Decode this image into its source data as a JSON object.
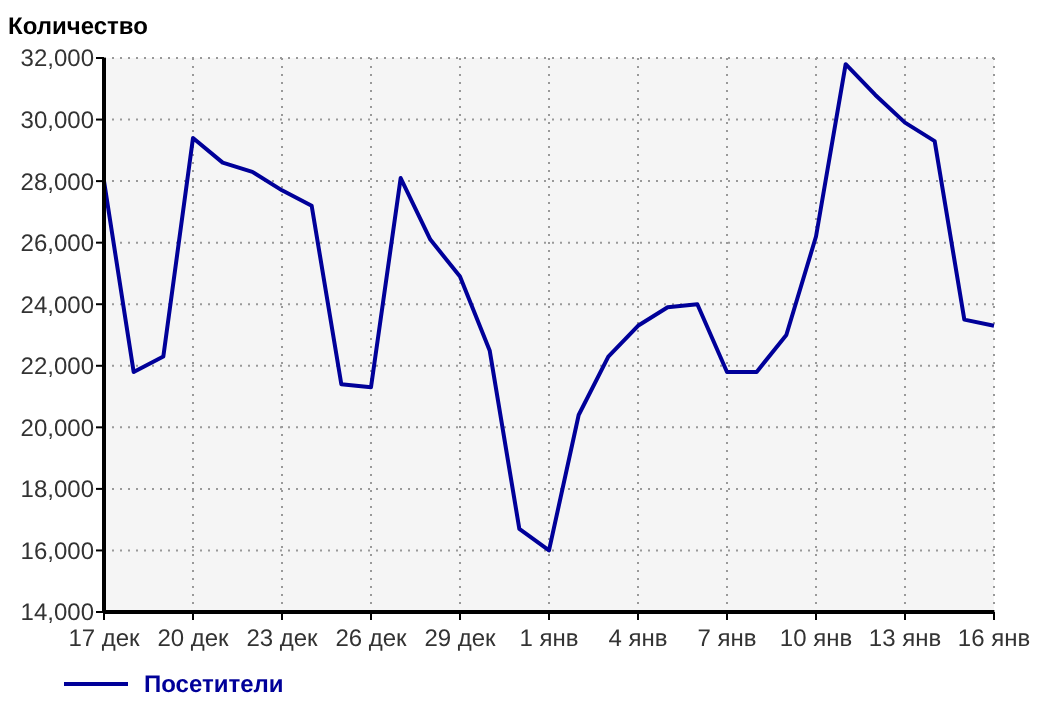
{
  "chart_data": {
    "type": "line",
    "ylabel": "Количество",
    "categories": [
      "17 дек",
      null,
      null,
      "20 дек",
      null,
      null,
      "23 дек",
      null,
      null,
      "26 дек",
      null,
      null,
      "29 дек",
      null,
      null,
      "1 янв",
      null,
      null,
      "4 янв",
      null,
      null,
      "7 янв",
      null,
      null,
      "10 янв",
      null,
      null,
      "13 янв",
      null,
      null,
      "16 янв"
    ],
    "series": [
      {
        "name": "Посетители",
        "color": "#000099",
        "values": [
          28000,
          21800,
          22300,
          29400,
          28600,
          28300,
          27700,
          27200,
          21400,
          21300,
          28100,
          26100,
          24900,
          22500,
          16700,
          16000,
          20400,
          22300,
          23300,
          23900,
          24000,
          21800,
          21800,
          23000,
          26200,
          31800,
          30800,
          29900,
          29300,
          23500,
          23300
        ]
      }
    ],
    "ylim": [
      14000,
      32000
    ],
    "yticks": [
      {
        "value": 14000,
        "label": "14,000"
      },
      {
        "value": 16000,
        "label": "16,000"
      },
      {
        "value": 18000,
        "label": "18,000"
      },
      {
        "value": 20000,
        "label": "20,000"
      },
      {
        "value": 22000,
        "label": "22,000"
      },
      {
        "value": 24000,
        "label": "24,000"
      },
      {
        "value": 26000,
        "label": "26,000"
      },
      {
        "value": 28000,
        "label": "28,000"
      },
      {
        "value": 30000,
        "label": "30,000"
      },
      {
        "value": 32000,
        "label": "32,000"
      }
    ],
    "grid": true,
    "legend": "bottom left"
  }
}
